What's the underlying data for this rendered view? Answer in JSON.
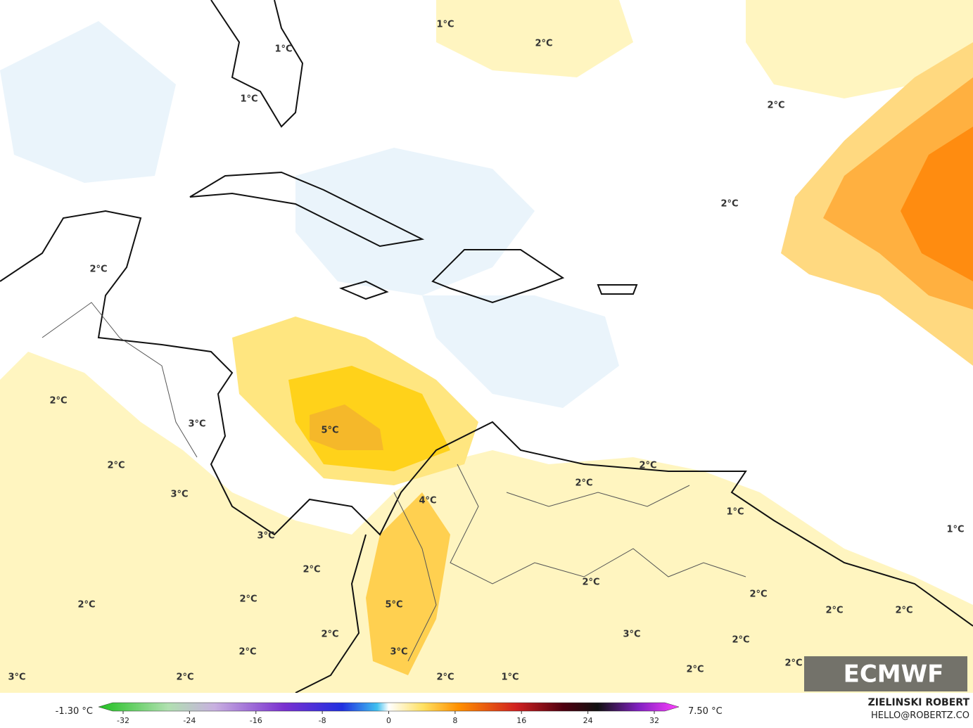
{
  "map": {
    "contour_labels": [
      "1°C",
      "2°C",
      "1°C",
      "1°C",
      "2°C",
      "2°C",
      "2°C",
      "2°C",
      "3°C",
      "5°C",
      "2°C",
      "2°C",
      "2°C",
      "3°C",
      "4°C",
      "1°C",
      "1°C",
      "3°C",
      "2°C",
      "2°C",
      "2°C",
      "2°C",
      "2°C",
      "5°C",
      "2°C",
      "2°C",
      "3°C",
      "2°C",
      "2°C",
      "3°C",
      "2°C",
      "2°C",
      "2°C",
      "3°C",
      "2°C",
      "2°C",
      "1°C"
    ],
    "logo": "ECMWF"
  },
  "colorbar": {
    "min_label": "-1.30 °C",
    "max_label": "7.50 °C",
    "ticks": [
      -32,
      -24,
      -16,
      -8,
      0,
      8,
      16,
      24,
      32
    ]
  },
  "credits": {
    "author": "ZIELINSKI ROBERT",
    "contact": "HELLO@ROBERTZ.CO"
  }
}
